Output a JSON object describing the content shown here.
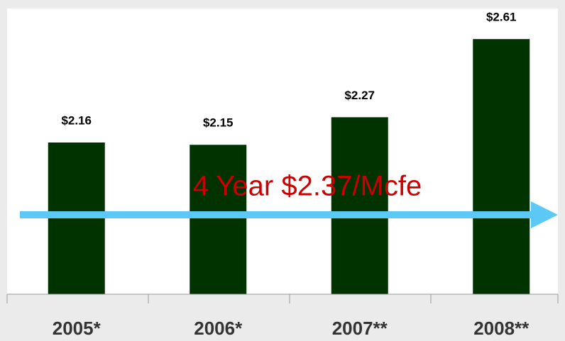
{
  "chart_data": {
    "type": "bar",
    "categories": [
      "2005*",
      "2006*",
      "2007**",
      "2008**"
    ],
    "values": [
      2.16,
      2.15,
      2.27,
      2.61
    ],
    "value_labels": [
      "$2.16",
      "$2.15",
      "$2.27",
      "$2.61"
    ],
    "color": "#003300",
    "ylim": [
      1.5,
      2.78
    ],
    "annotation": "4 Year $2.37/Mcfe"
  }
}
